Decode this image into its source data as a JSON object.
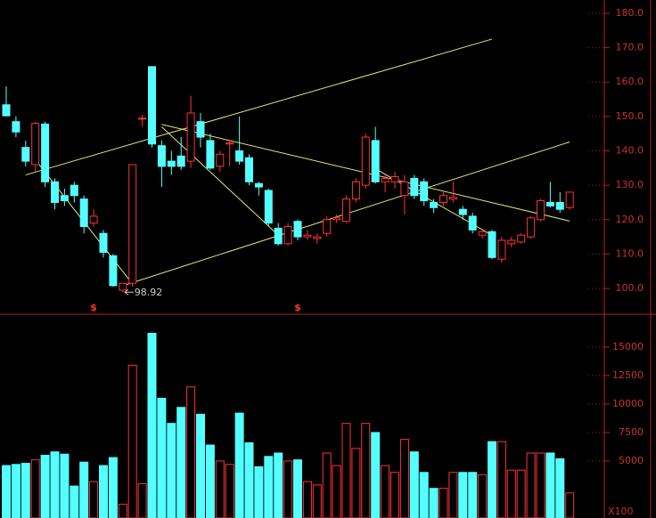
{
  "chart_data": [
    {
      "type": "candlestick",
      "open": [
        153.4,
        148.5,
        141,
        136,
        147.8,
        131,
        127,
        130,
        126,
        119,
        116,
        109.5,
        99.5,
        101.5,
        149.5,
        164.5,
        141.5,
        137,
        138.5,
        137,
        148.5,
        143,
        135.5,
        142,
        140,
        138,
        130.5,
        128.5,
        117.5,
        113,
        119.5,
        115,
        114.5,
        116,
        120,
        119.5,
        126,
        130,
        143,
        131,
        131,
        127,
        132,
        131,
        125,
        125,
        126,
        123,
        121,
        115.5,
        116.5,
        108.5,
        113,
        113.5,
        115,
        120,
        125,
        125,
        123.5
      ],
      "high": [
        158.8,
        150,
        143,
        148.5,
        148.5,
        132,
        129,
        131,
        127,
        123,
        117,
        110,
        101.5,
        136,
        150.5,
        164.5,
        143,
        140,
        144,
        156,
        151,
        145,
        140,
        143,
        150,
        139,
        131,
        129,
        119,
        119,
        120,
        117,
        116,
        121,
        121.5,
        127,
        132,
        145,
        147,
        133,
        134,
        133,
        133,
        132,
        126,
        128,
        131,
        124,
        122,
        117,
        117,
        115,
        115,
        116,
        121,
        126,
        131,
        128,
        128
      ],
      "low": [
        150,
        144,
        135.5,
        134,
        129.5,
        123,
        124,
        125,
        116,
        118,
        109,
        100.5,
        98.92,
        100.5,
        147,
        141,
        129.5,
        133,
        134.5,
        135,
        141,
        134.5,
        134,
        135.5,
        136,
        130,
        127,
        118,
        112.5,
        112.5,
        114,
        114,
        113,
        115,
        119,
        119,
        125,
        129,
        130.5,
        128,
        129,
        121.5,
        126,
        124,
        122,
        124,
        125,
        120,
        116,
        114.5,
        108.5,
        107.5,
        112,
        113,
        114.5,
        119.5,
        123.5,
        122,
        123
      ],
      "close": [
        150.2,
        145.5,
        137,
        148,
        131,
        125,
        125.5,
        127,
        118,
        121,
        110.5,
        100.8,
        101.5,
        136,
        149.5,
        142,
        135.5,
        135.5,
        135.5,
        151,
        144,
        135,
        139,
        142.3,
        137,
        131,
        129.5,
        119,
        113,
        118,
        115,
        115.5,
        115,
        120,
        120.5,
        126,
        131,
        144,
        131,
        132,
        132.5,
        131,
        127,
        125.5,
        123.5,
        127,
        126.5,
        121.5,
        117,
        116.5,
        109,
        114,
        114,
        115.5,
        120.5,
        125.5,
        124,
        123,
        128
      ],
      "up_color": "#ff3232",
      "down_color": "#54ffff",
      "ylim": [
        92.77,
        183.87
      ],
      "yticks": [
        {
          "value": 100,
          "label": "100.0"
        },
        {
          "value": 110,
          "label": "110.0"
        },
        {
          "value": 120,
          "label": "120.0"
        },
        {
          "value": 130,
          "label": "130.0"
        },
        {
          "value": 140,
          "label": "140.0"
        },
        {
          "value": 150,
          "label": "150.0"
        },
        {
          "value": 160,
          "label": "160.0"
        },
        {
          "value": 170,
          "label": "170.0"
        },
        {
          "value": 180,
          "label": "180.0"
        }
      ],
      "trendlines": [
        [
          2,
          133,
          50,
          172.5
        ],
        [
          12,
          100.8,
          58,
          142.6
        ],
        [
          16,
          147.7,
          58,
          119.6
        ],
        [
          3,
          137.4,
          13,
          101.3
        ],
        [
          16,
          147,
          28,
          115.5
        ],
        [
          38,
          134.8,
          50,
          115.5
        ]
      ],
      "trend_color": "#e6e678",
      "markers": [
        {
          "index": 9,
          "label": "$"
        },
        {
          "index": 30,
          "label": "$"
        }
      ],
      "low_annotation_index": 12
    },
    {
      "type": "bar",
      "values": [
        4600,
        4700,
        4800,
        5100,
        5500,
        5800,
        5600,
        2800,
        4900,
        3200,
        4600,
        5300,
        1200,
        13400,
        3000,
        16200,
        10500,
        8300,
        9700,
        11500,
        9100,
        6400,
        5000,
        4700,
        9200,
        6600,
        4500,
        5400,
        5700,
        5000,
        5100,
        3200,
        2900,
        5700,
        4600,
        8300,
        6100,
        8300,
        7500,
        4600,
        4000,
        6900,
        5800,
        4000,
        2600,
        2600,
        4000,
        4000,
        4000,
        3800,
        6700,
        6700,
        4200,
        4200,
        5700,
        5700,
        5700,
        5200,
        2200
      ],
      "ylim": [
        0,
        17800
      ],
      "yticks": [
        5000,
        7500,
        10000,
        12500,
        15000
      ],
      "unit_label": "X100"
    }
  ]
}
